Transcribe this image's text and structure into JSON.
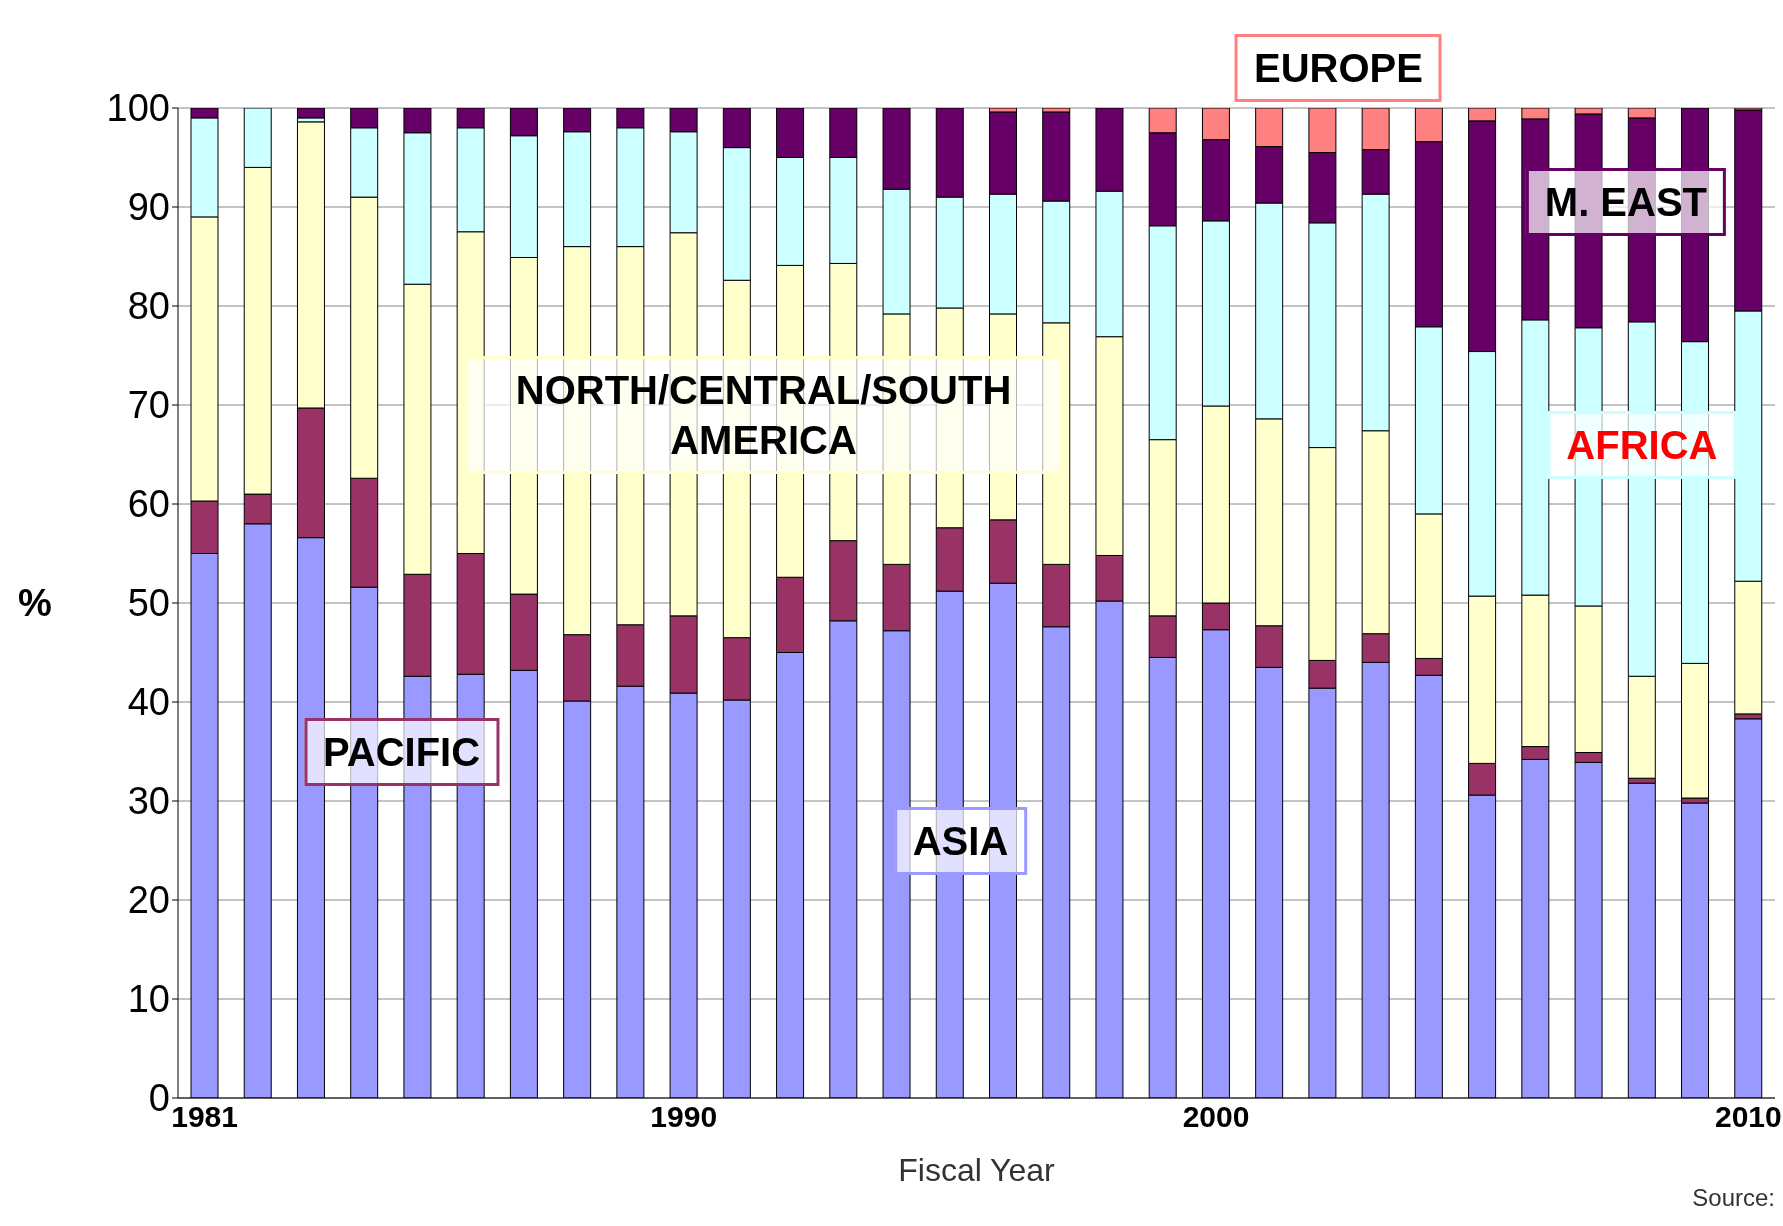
{
  "chart_data": {
    "type": "bar",
    "stacked": true,
    "xlabel": "Fiscal Year",
    "ylabel": "%",
    "ylim": [
      0,
      100
    ],
    "yticks": [
      0,
      10,
      20,
      30,
      40,
      50,
      60,
      70,
      80,
      90,
      100
    ],
    "grid": "y",
    "categories": [
      "1981",
      null,
      null,
      null,
      null,
      null,
      null,
      null,
      null,
      "1990",
      null,
      null,
      null,
      null,
      null,
      null,
      null,
      null,
      null,
      "2000",
      null,
      null,
      null,
      null,
      null,
      null,
      null,
      null,
      null,
      "2010"
    ],
    "series": [
      {
        "name": "ASIA",
        "color": "#9999ff",
        "values": [
          55,
          58,
          56.6,
          51.6,
          42.6,
          42.8,
          43.2,
          40.1,
          41.6,
          40.9,
          40.2,
          45,
          48.2,
          47.2,
          51.2,
          52,
          47.6,
          50.2,
          44.5,
          47.3,
          43.5,
          41.4,
          44,
          42.7,
          30.6,
          34.2,
          33.9,
          31.8,
          29.8,
          38.3
        ]
      },
      {
        "name": "PACIFIC",
        "color": "#993366",
        "values": [
          5.3,
          3,
          13.1,
          11,
          10.3,
          12.2,
          7.7,
          6.7,
          6.2,
          7.8,
          6.3,
          7.6,
          8.1,
          6.7,
          6.4,
          6.4,
          6.3,
          4.6,
          4.2,
          2.7,
          4.2,
          2.8,
          2.9,
          1.7,
          3.2,
          1.3,
          1,
          0.5,
          0.5,
          0.5
        ]
      },
      {
        "name": "NORTH/CENTRAL/SOUTH AMERICA",
        "color": "#ffffcc",
        "values": [
          28.7,
          33,
          28.9,
          28.4,
          29.3,
          32.5,
          34,
          39.2,
          38.2,
          38.7,
          36.1,
          31.5,
          28,
          25.3,
          22.2,
          20.8,
          24.4,
          22.1,
          17.8,
          19.9,
          20.9,
          21.5,
          20.5,
          14.6,
          16.9,
          15.3,
          14.8,
          10.3,
          13.6,
          13.4
        ]
      },
      {
        "name": "AFRICA",
        "color": "#ccffff",
        "values": [
          10,
          6,
          0.4,
          7,
          15.3,
          10.5,
          12.3,
          11.6,
          12,
          10.2,
          13.4,
          10.9,
          10.7,
          12.6,
          11.2,
          12.1,
          12.3,
          14.7,
          21.6,
          18.7,
          21.8,
          22.7,
          23.9,
          18.9,
          24.7,
          27.8,
          28.1,
          35.8,
          32.5,
          27.3
        ]
      },
      {
        "name": "M. EAST",
        "color": "#660066",
        "values": [
          1,
          0,
          1,
          2,
          2.5,
          2,
          2.8,
          2.4,
          2,
          2.4,
          4,
          5,
          5,
          8.2,
          9,
          8.3,
          9,
          8.4,
          9.4,
          8.2,
          5.7,
          7.1,
          4.5,
          18.7,
          23.3,
          20.3,
          21.6,
          20.6,
          23.6,
          20.3
        ]
      },
      {
        "name": "EUROPE",
        "color": "#ff8080",
        "values": [
          0,
          0,
          0,
          0,
          0,
          0,
          0,
          0,
          0,
          0,
          0,
          0,
          0,
          0,
          0,
          0.4,
          0.4,
          0,
          2.5,
          3.2,
          3.9,
          4.5,
          4.2,
          3.4,
          1.3,
          1.1,
          0.6,
          1,
          0,
          0.2
        ]
      }
    ],
    "annotations": [
      "Source:"
    ]
  }
}
